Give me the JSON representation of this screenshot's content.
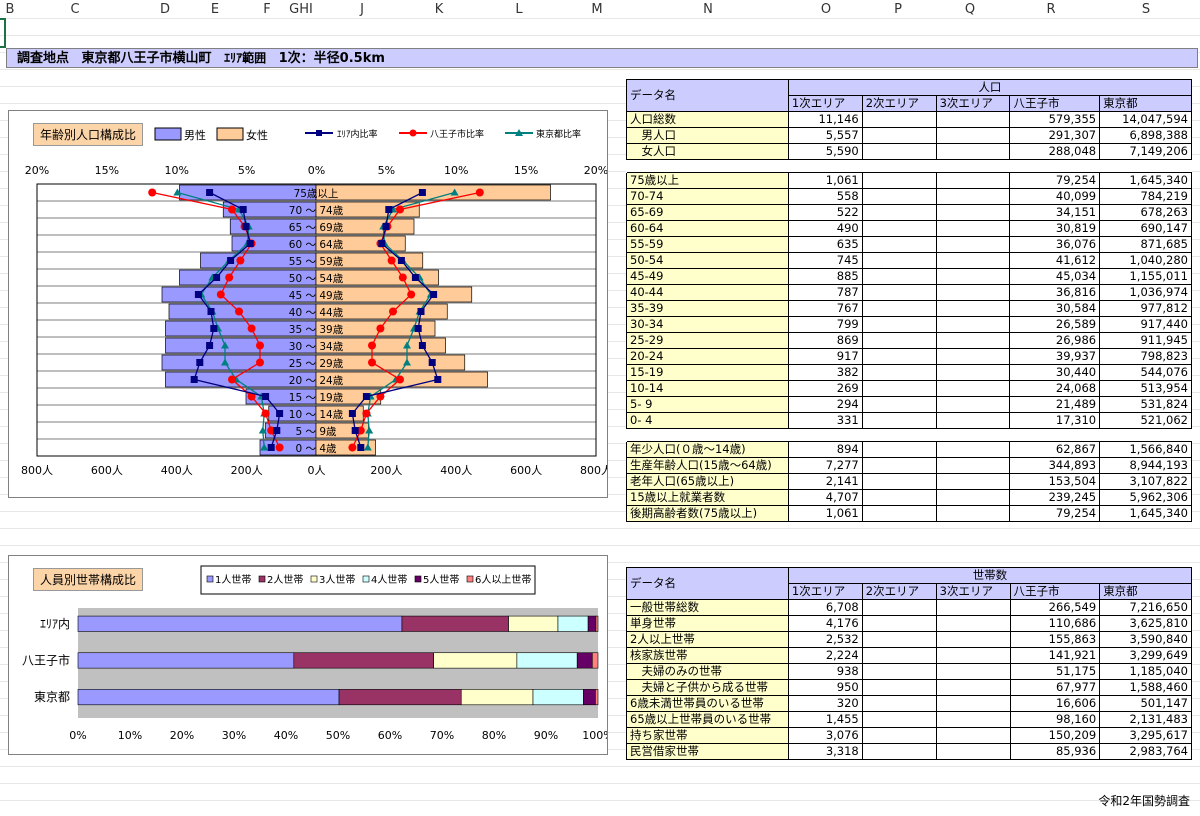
{
  "columns": [
    "B",
    "C",
    "D",
    "E",
    "F",
    "G",
    "H",
    "I",
    "J",
    "K",
    "L",
    "M",
    "N",
    "O",
    "P",
    "Q",
    "R",
    "S"
  ],
  "title": {
    "survey_label": "調査地点",
    "location": "東京都八王子市横山町",
    "area_label": "ｴﾘｱ範囲",
    "area_value": "1次：半径0.5km"
  },
  "pyramid": {
    "title": "年齢別人口構成比",
    "legend": {
      "male": "男性",
      "female": "女性",
      "area": "ｴﾘｱ内比率",
      "hachioji": "八王子市比率",
      "tokyo": "東京都比率"
    },
    "top_ticks": [
      "20%",
      "15%",
      "10%",
      "5%",
      "0%",
      "5%",
      "10%",
      "15%",
      "20%"
    ],
    "bottom_ticks": [
      "800人",
      "600人",
      "400人",
      "200人",
      "0人",
      "200人",
      "400人",
      "600人",
      "800人"
    ],
    "colors": {
      "male": "#9999ff",
      "female": "#ffcc99",
      "area": "#000080",
      "hachioji": "#ff0000",
      "tokyo": "#008080"
    }
  },
  "chart_data": [
    {
      "type": "bar",
      "title": "年齢別人口構成比",
      "categories": [
        "75歳以上",
        "70 ～ 74歳",
        "65 ～ 69歳",
        "60 ～ 64歳",
        "55 ～ 59歳",
        "50 ～ 54歳",
        "45 ～ 49歳",
        "40 ～ 44歳",
        "35 ～ 39歳",
        "30 ～ 34歳",
        "25 ～ 29歳",
        "20 ～ 24歳",
        "15 ～ 19歳",
        "10 ～ 14歳",
        "5 ～ 9歳",
        "0 ～ 4歳"
      ],
      "xlim": [
        -800,
        800
      ],
      "series": [
        {
          "name": "男性",
          "values": [
            -390,
            -265,
            -245,
            -240,
            -330,
            -390,
            -440,
            -420,
            -430,
            -430,
            -440,
            -430,
            -200,
            -135,
            -145,
            -160
          ]
        },
        {
          "name": "女性",
          "values": [
            670,
            295,
            280,
            255,
            305,
            350,
            445,
            375,
            340,
            370,
            425,
            490,
            185,
            135,
            150,
            170
          ]
        },
        {
          "name": "ｴﾘｱ内比率",
          "values": [
            -7.6,
            5.2,
            -5.0,
            4.7,
            -6.1,
            7.1,
            -8.4,
            7.5,
            -7.3,
            -7.6,
            8.3,
            -8.7,
            3.6,
            2.6,
            -2.8,
            3.2
          ]
        },
        {
          "name": "八王子市比率",
          "values": [
            -11.7,
            -6.0,
            -5.1,
            -4.6,
            -5.4,
            6.2,
            -6.8,
            -5.5,
            -4.6,
            -4.0,
            -4.0,
            -6.0,
            -4.6,
            -3.6,
            -3.2,
            -2.6
          ]
        },
        {
          "name": "東京都比率",
          "values": [
            -9.9,
            -5.5,
            -4.8,
            -4.9,
            -6.2,
            7.4,
            -8.2,
            -7.4,
            -7.0,
            -6.5,
            -6.5,
            -5.7,
            -3.9,
            -3.7,
            -3.8,
            -3.7
          ]
        }
      ]
    },
    {
      "type": "bar",
      "title": "人員別世帯構成比",
      "categories": [
        "ｴﾘｱ内",
        "八王子市",
        "東京都"
      ],
      "xticks": [
        "0%",
        "10%",
        "20%",
        "30%",
        "40%",
        "50%",
        "60%",
        "70%",
        "80%",
        "90%",
        "100%"
      ],
      "xlim": [
        0,
        100
      ],
      "stacked": true,
      "series": [
        {
          "name": "1人世帯",
          "color": "#9999ff",
          "values": [
            62.3,
            41.5,
            50.2
          ]
        },
        {
          "name": "2人世帯",
          "color": "#993366",
          "values": [
            20.5,
            26.9,
            23.5
          ]
        },
        {
          "name": "3人世帯",
          "color": "#ffffcc",
          "values": [
            9.5,
            16.0,
            13.8
          ]
        },
        {
          "name": "4人世帯",
          "color": "#ccffff",
          "values": [
            5.8,
            11.6,
            9.7
          ]
        },
        {
          "name": "5人世帯",
          "color": "#660066",
          "values": [
            1.5,
            2.9,
            2.3
          ]
        },
        {
          "name": "6人以上世帯",
          "color": "#ff8080",
          "values": [
            0.4,
            1.1,
            0.5
          ]
        }
      ]
    }
  ],
  "household_chart": {
    "title": "人員別世帯構成比"
  },
  "table_pop": {
    "header": {
      "name": "データ名",
      "group": "人口",
      "cols": [
        "1次エリア",
        "2次エリア",
        "3次エリア",
        "八王子市",
        "東京都"
      ]
    },
    "summary": [
      {
        "label": "人口総数",
        "v1": "11,146",
        "v2": "",
        "v3": "",
        "v4": "579,355",
        "v5": "14,047,594"
      },
      {
        "label": "　男人口",
        "v1": "5,557",
        "v2": "",
        "v3": "",
        "v4": "291,307",
        "v5": "6,898,388"
      },
      {
        "label": "　女人口",
        "v1": "5,590",
        "v2": "",
        "v3": "",
        "v4": "288,048",
        "v5": "7,149,206"
      }
    ],
    "ages": [
      {
        "label": "75歳以上",
        "v1": "1,061",
        "v4": "79,254",
        "v5": "1,645,340"
      },
      {
        "label": "70-74",
        "v1": "558",
        "v4": "40,099",
        "v5": "784,219"
      },
      {
        "label": "65-69",
        "v1": "522",
        "v4": "34,151",
        "v5": "678,263"
      },
      {
        "label": "60-64",
        "v1": "490",
        "v4": "30,819",
        "v5": "690,147"
      },
      {
        "label": "55-59",
        "v1": "635",
        "v4": "36,076",
        "v5": "871,685"
      },
      {
        "label": "50-54",
        "v1": "745",
        "v4": "41,612",
        "v5": "1,040,280"
      },
      {
        "label": "45-49",
        "v1": "885",
        "v4": "45,034",
        "v5": "1,155,011"
      },
      {
        "label": "40-44",
        "v1": "787",
        "v4": "36,816",
        "v5": "1,036,974"
      },
      {
        "label": "35-39",
        "v1": "767",
        "v4": "30,584",
        "v5": "977,812"
      },
      {
        "label": "30-34",
        "v1": "799",
        "v4": "26,589",
        "v5": "917,440"
      },
      {
        "label": "25-29",
        "v1": "869",
        "v4": "26,986",
        "v5": "911,945"
      },
      {
        "label": "20-24",
        "v1": "917",
        "v4": "39,937",
        "v5": "798,823"
      },
      {
        "label": "15-19",
        "v1": "382",
        "v4": "30,440",
        "v5": "544,076"
      },
      {
        "label": "10-14",
        "v1": "269",
        "v4": "24,068",
        "v5": "513,954"
      },
      {
        "label": " 5- 9",
        "v1": "294",
        "v4": "21,489",
        "v5": "531,824"
      },
      {
        "label": " 0- 4",
        "v1": "331",
        "v4": "17,310",
        "v5": "521,062"
      }
    ],
    "groups": [
      {
        "label": "年少人口(０歳～14歳)",
        "v1": "894",
        "v4": "62,867",
        "v5": "1,566,840"
      },
      {
        "label": "生産年齢人口(15歳～64歳)",
        "v1": "7,277",
        "v4": "344,893",
        "v5": "8,944,193"
      },
      {
        "label": "老年人口(65歳以上)",
        "v1": "2,141",
        "v4": "153,504",
        "v5": "3,107,822"
      },
      {
        "label": "15歳以上就業者数",
        "v1": "4,707",
        "v4": "239,245",
        "v5": "5,962,306"
      },
      {
        "label": "後期高齢者数(75歳以上)",
        "v1": "1,061",
        "v4": "79,254",
        "v5": "1,645,340"
      }
    ]
  },
  "table_hh": {
    "header": {
      "name": "データ名",
      "group": "世帯数",
      "cols": [
        "1次エリア",
        "2次エリア",
        "3次エリア",
        "八王子市",
        "東京都"
      ]
    },
    "rows": [
      {
        "label": "一般世帯総数",
        "v1": "6,708",
        "v4": "266,549",
        "v5": "7,216,650"
      },
      {
        "label": "単身世帯",
        "v1": "4,176",
        "v4": "110,686",
        "v5": "3,625,810"
      },
      {
        "label": "2人以上世帯",
        "v1": "2,532",
        "v4": "155,863",
        "v5": "3,590,840"
      },
      {
        "label": "核家族世帯",
        "v1": "2,224",
        "v4": "141,921",
        "v5": "3,299,649"
      },
      {
        "label": "　夫婦のみの世帯",
        "v1": "938",
        "v4": "51,175",
        "v5": "1,185,040"
      },
      {
        "label": "　夫婦と子供から成る世帯",
        "v1": "950",
        "v4": "67,977",
        "v5": "1,588,460"
      },
      {
        "label": "6歳未満世帯員のいる世帯",
        "v1": "320",
        "v4": "16,606",
        "v5": "501,147"
      },
      {
        "label": "65歳以上世帯員のいる世帯",
        "v1": "1,455",
        "v4": "98,160",
        "v5": "2,131,483"
      },
      {
        "label": "持ち家世帯",
        "v1": "3,076",
        "v4": "150,209",
        "v5": "3,295,617"
      },
      {
        "label": "民営借家世帯",
        "v1": "3,318",
        "v4": "85,936",
        "v5": "2,983,764"
      }
    ]
  },
  "footer": "令和2年国勢調査"
}
